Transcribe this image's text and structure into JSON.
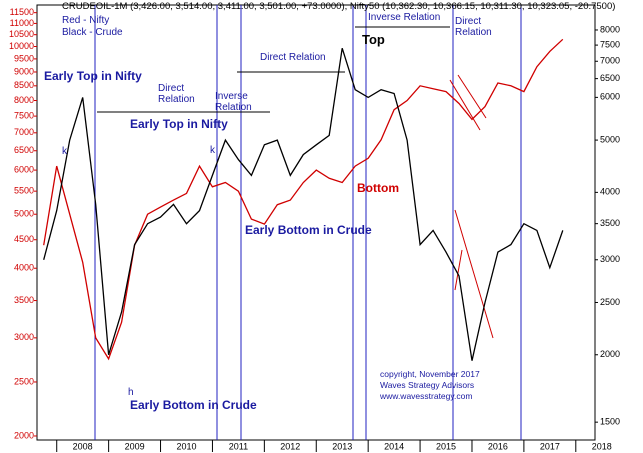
{
  "chart_data": {
    "type": "line",
    "title": "CRUDEOIL-1M (3,426.00, 3,514.00, 3,411.00, 3,501.00, +73.0000), Nifty50 (10,362.30, 10,366.15, 10,311.30, 10,323.05, -20.7500)",
    "annotations": [
      "Red - Nifty",
      "Black - Crude",
      "Early Top in Nifty",
      "Direct Relation",
      "Early Top in Nifty",
      "Inverse Relation",
      "Direct Relation",
      "Top",
      "Inverse Relation",
      "Direct Relation",
      "k",
      "k",
      "h",
      "Bottom",
      "Early Bottom in Crude",
      "Early Bottom in Crude",
      "copyright, November 2017",
      "Waves Strategy Advisors",
      "www.wavesstrategy.com"
    ],
    "x": [
      2007.75,
      2008.0,
      2008.25,
      2008.5,
      2008.75,
      2009.0,
      2009.25,
      2009.5,
      2009.75,
      2010.0,
      2010.25,
      2010.5,
      2010.75,
      2011.0,
      2011.25,
      2011.5,
      2011.75,
      2012.0,
      2012.25,
      2012.5,
      2012.75,
      2013.0,
      2013.25,
      2013.5,
      2013.75,
      2014.0,
      2014.25,
      2014.5,
      2014.75,
      2015.0,
      2015.25,
      2015.5,
      2015.75,
      2016.0,
      2016.25,
      2016.5,
      2016.75,
      2017.0,
      2017.25,
      2017.5,
      2017.75
    ],
    "series": [
      {
        "name": "Nifty50",
        "color": "#d00000",
        "values": [
          4400,
          6100,
          5000,
          4100,
          3000,
          2750,
          3200,
          4400,
          5000,
          5150,
          5300,
          5450,
          6100,
          5600,
          5700,
          5500,
          4900,
          4800,
          5200,
          5300,
          5700,
          6000,
          5800,
          5700,
          6100,
          6300,
          6800,
          7700,
          8000,
          8500,
          8400,
          8300,
          7900,
          7400,
          7800,
          8600,
          8500,
          8300,
          9200,
          9800,
          10300
        ]
      },
      {
        "name": "CRUDEOIL",
        "color": "#000000",
        "axis": "y2",
        "values": [
          3000,
          3700,
          5000,
          6000,
          3800,
          2000,
          2400,
          3200,
          3500,
          3600,
          3800,
          3500,
          3700,
          4300,
          5000,
          4600,
          4300,
          4900,
          5000,
          4300,
          4700,
          4900,
          5100,
          7400,
          6200,
          6000,
          6200,
          6100,
          5000,
          3200,
          3400,
          3100,
          2800,
          1950,
          2500,
          3100,
          3200,
          3500,
          3400,
          2900,
          3400
        ]
      }
    ],
    "xlim": [
      2007.62,
      2018.37
    ],
    "xticks": [
      2008,
      2009,
      2010,
      2011,
      2012,
      2013,
      2014,
      2015,
      2016,
      2017,
      2018
    ],
    "ylim": [
      1967,
      11870
    ],
    "yticks": [
      2000,
      2500,
      3000,
      3500,
      4000,
      4500,
      5000,
      5500,
      6000,
      6500,
      7000,
      7500,
      8000,
      8500,
      9000,
      9500,
      10000,
      10500,
      11000,
      11500
    ],
    "y2lim": [
      1390,
      8900
    ],
    "y2ticks": [
      1500,
      2000,
      2500,
      3000,
      3500,
      4000,
      5000,
      6000,
      6500,
      7000,
      7500,
      8000
    ],
    "log_scale": true,
    "grid": false
  }
}
